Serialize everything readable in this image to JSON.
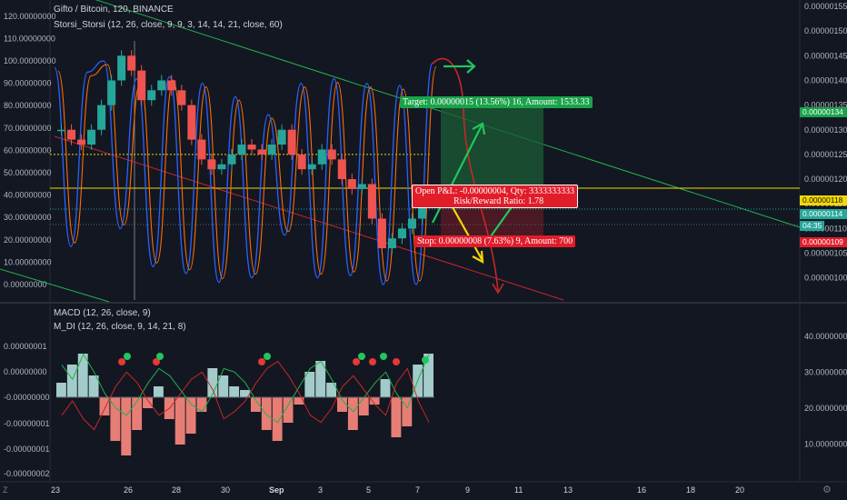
{
  "header": {
    "symbol_line": "Gifto / Bitcoin, 120, BINANCE",
    "indicator_line": "Storsi_Storsi (12, 26, close, 9, 9, 3, 14, 14, 21, close, 60)",
    "macd_title": "MACD (12, 26, close, 9)",
    "mdi_title": "M_DI (12, 26, close, 9, 14, 21, 8)"
  },
  "chart_data": [
    {
      "type": "line",
      "title": "Gifto / Bitcoin, 120, BINANCE",
      "left_axis_ticks": [
        "120.00000000",
        "110.00000000",
        "100.00000000",
        "90.00000000",
        "80.00000000",
        "70.00000000",
        "60.00000000",
        "50.00000000",
        "40.00000000",
        "30.00000000",
        "20.00000000",
        "10.00000000",
        "0.00000000"
      ],
      "left_ylim": [
        0,
        120
      ],
      "right_axis_ticks": [
        "0.00000155",
        "0.00000150",
        "0.00000145",
        "0.00000140",
        "0.00000135",
        "0.00000130",
        "0.00000125",
        "0.00000120",
        "0.00000115",
        "0.00000110",
        "0.00000105",
        "0.00000100"
      ],
      "right_ylim": [
        1e-06,
        1.55e-06
      ],
      "x_ticks": [
        "23",
        "26",
        "28",
        "30",
        "Sep",
        "3",
        "5",
        "7",
        "9",
        "11",
        "13",
        "16",
        "18",
        "20"
      ],
      "price_series": {
        "name": "Gifto / Bitcoin",
        "close": [
          1.3e-06,
          1.28e-06,
          1.27e-06,
          1.3e-06,
          1.35e-06,
          1.4e-06,
          1.45e-06,
          1.42e-06,
          1.36e-06,
          1.38e-06,
          1.4e-06,
          1.38e-06,
          1.35e-06,
          1.28e-06,
          1.24e-06,
          1.22e-06,
          1.23e-06,
          1.25e-06,
          1.27e-06,
          1.26e-06,
          1.25e-06,
          1.27e-06,
          1.3e-06,
          1.25e-06,
          1.22e-06,
          1.23e-06,
          1.26e-06,
          1.24e-06,
          1.2e-06,
          1.18e-06,
          1.19e-06,
          1.12e-06,
          1.06e-06,
          1.08e-06,
          1.1e-06,
          1.12e-06,
          1.15e-06
        ]
      },
      "oscillator_series": {
        "name": "Storsi_Storsi",
        "peaks": [
          97,
          17,
          95,
          100,
          25,
          92,
          8,
          93,
          5,
          90,
          1,
          84,
          3,
          76,
          22,
          90,
          3,
          92,
          4,
          90,
          0,
          89,
          0,
          99
        ],
        "troughs_values": [
          0
        ]
      },
      "horizontal_levels": {
        "yellow_dotted": 1.25e-06,
        "open_line": 1.18e-06,
        "current": 1.14e-06,
        "stop_line": 1.09e-06
      },
      "annotations": {
        "target": "Target: 0.00000015 (13.56%) 16, Amount: 1533.33",
        "open": "Open P&L: -0.00000004, Qty: 3333333333",
        "risk_reward": "Risk/Reward Ratio: 1.78",
        "stop": "Stop: 0.00000008 (7.63%) 9, Amount: 700"
      },
      "price_tags": {
        "target_price": "0.00000134",
        "open_price": "0.00000118",
        "current_price": "0.00000114",
        "countdown": "04:35",
        "stop_price": "0.00000109"
      }
    },
    {
      "type": "bar",
      "title": "MACD (12, 26, close, 9)",
      "left_axis_ticks": [
        "0.00000001",
        "0.00000000",
        "-0.00000000",
        "-0.00000001",
        "-0.00000001",
        "-0.00000002"
      ],
      "right_axis_ticks": [
        "40.00000000",
        "30.00000000",
        "20.00000000",
        "10.00000000"
      ],
      "right_ylim": [
        0,
        45
      ],
      "histogram": [
        0.4,
        0.9,
        1.2,
        0.6,
        -0.5,
        -1.2,
        -1.6,
        -0.9,
        -0.3,
        0.3,
        -0.6,
        -1.3,
        -1.0,
        -0.4,
        0.8,
        0.6,
        0.3,
        0.2,
        -0.4,
        -0.9,
        -1.2,
        -0.7,
        -0.2,
        0.7,
        1.0,
        0.4,
        -0.4,
        -0.9,
        -0.5,
        -0.2,
        0.5,
        -1.1,
        -0.8,
        0.9,
        1.2
      ],
      "series": [
        {
          "name": "green",
          "values": [
            32,
            28,
            35,
            30,
            24,
            20,
            18,
            22,
            27,
            31,
            29,
            25,
            21,
            19,
            24,
            31,
            30,
            27,
            22,
            18,
            16,
            21,
            26,
            31,
            33,
            28,
            22,
            19,
            23,
            27,
            30,
            24,
            20,
            28,
            35
          ]
        },
        {
          "name": "red",
          "values": [
            18,
            22,
            17,
            14,
            20,
            26,
            30,
            27,
            22,
            18,
            20,
            24,
            28,
            30,
            25,
            17,
            19,
            22,
            27,
            31,
            33,
            29,
            24,
            18,
            16,
            20,
            26,
            29,
            25,
            21,
            18,
            27,
            31,
            22,
            16
          ]
        }
      ]
    }
  ]
}
